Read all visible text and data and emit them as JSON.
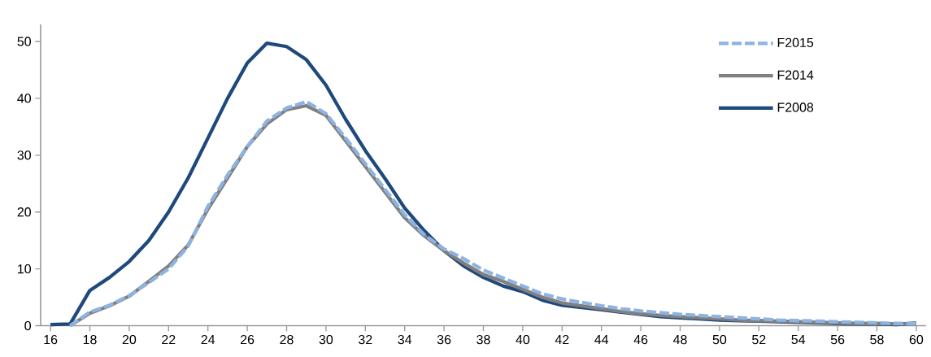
{
  "chart_data": {
    "type": "line",
    "x": [
      16,
      17,
      18,
      19,
      20,
      21,
      22,
      23,
      24,
      25,
      26,
      27,
      28,
      29,
      30,
      31,
      32,
      33,
      34,
      35,
      36,
      37,
      38,
      39,
      40,
      41,
      42,
      43,
      44,
      45,
      46,
      47,
      48,
      49,
      50,
      51,
      52,
      53,
      54,
      55,
      56,
      57,
      58,
      59,
      60
    ],
    "series": [
      {
        "name": "F2015",
        "color": "#8db3e2",
        "line_style": "dashed",
        "values": [
          null,
          0,
          2.4,
          3.6,
          5.3,
          7.6,
          10,
          14,
          21,
          26.5,
          31.5,
          36,
          38.3,
          39.4,
          37.3,
          33,
          28.5,
          24,
          19.5,
          16,
          13.5,
          11.8,
          9.8,
          8.4,
          7,
          5.6,
          4.7,
          4.1,
          3.5,
          3,
          2.6,
          2.3,
          2,
          1.8,
          1.6,
          1.4,
          1.2,
          1.0,
          0.9,
          0.8,
          0.7,
          0.6,
          0.5,
          0.4,
          0.4
        ]
      },
      {
        "name": "F2014",
        "color": "#808080",
        "line_style": "solid",
        "values": [
          null,
          0,
          2.2,
          3.5,
          5.2,
          7.8,
          10.5,
          14.2,
          20.5,
          26,
          31.5,
          35.5,
          38,
          38.7,
          37,
          32.5,
          28,
          23.5,
          19,
          15.8,
          13.2,
          11,
          9,
          7.8,
          6.4,
          5,
          4,
          3.5,
          3,
          2.5,
          2.1,
          1.8,
          1.6,
          1.4,
          1.2,
          1,
          0.9,
          0.8,
          0.7,
          0.6,
          0.5,
          0.4,
          0.4,
          0.3,
          0.3
        ]
      },
      {
        "name": "F2008",
        "color": "#1f497d",
        "line_style": "solid",
        "values": [
          0.2,
          0.3,
          6.2,
          8.5,
          11.3,
          15,
          20,
          26,
          33,
          40,
          46.2,
          49.7,
          49.1,
          46.8,
          42.3,
          36.3,
          30.8,
          25.9,
          20.7,
          16.7,
          13.2,
          10.5,
          8.5,
          7,
          6,
          4.5,
          3.6,
          3.2,
          2.8,
          2.4,
          2,
          1.6,
          1.4,
          1.2,
          1.0,
          0.9,
          0.8,
          0.7,
          0.6,
          0.5,
          0.4,
          0.3,
          0.3,
          0.2,
          0.5
        ]
      }
    ],
    "xlim": [
      15.5,
      60.5
    ],
    "xticks": [
      16,
      18,
      20,
      22,
      24,
      26,
      28,
      30,
      32,
      34,
      36,
      38,
      40,
      42,
      44,
      46,
      48,
      50,
      52,
      54,
      56,
      58,
      60
    ],
    "ylim": [
      0,
      53
    ],
    "yticks": [
      0,
      10,
      20,
      30,
      40,
      50
    ],
    "grid": false,
    "legend": "top right",
    "marker": "none"
  }
}
